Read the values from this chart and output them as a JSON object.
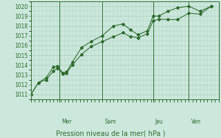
{
  "xlabel": "Pression niveau de la mer( hPa )",
  "ylim": [
    1010.5,
    1020.5
  ],
  "yticks": [
    1011,
    1012,
    1013,
    1014,
    1015,
    1016,
    1017,
    1018,
    1019,
    1020
  ],
  "bg_color": "#cce8dd",
  "grid_color": "#aaccbb",
  "line_color": "#2d6b2d",
  "vlines": [
    {
      "x": 15,
      "label": "Mer"
    },
    {
      "x": 38,
      "label": "Sam"
    },
    {
      "x": 65,
      "label": "Jeu"
    },
    {
      "x": 84,
      "label": "Ven"
    }
  ],
  "line1_x": [
    0,
    4,
    8,
    12,
    14,
    17,
    19,
    22,
    27,
    32,
    38,
    44,
    49,
    53,
    57,
    62,
    65,
    68,
    73,
    78,
    84,
    90,
    96
  ],
  "line1_y": [
    1011.0,
    1012.2,
    1012.7,
    1013.8,
    1013.9,
    1013.2,
    1013.3,
    1014.3,
    1015.8,
    1016.4,
    1017.0,
    1018.0,
    1018.2,
    1017.6,
    1017.1,
    1017.5,
    1019.0,
    1019.0,
    1019.5,
    1019.85,
    1020.0,
    1019.5,
    1020.0
  ],
  "line2_x": [
    0,
    4,
    8,
    12,
    14,
    17,
    19,
    22,
    27,
    32,
    38,
    44,
    49,
    53,
    57,
    62,
    65,
    68,
    73,
    78,
    84,
    90,
    96
  ],
  "line2_y": [
    1011.0,
    1012.2,
    1012.5,
    1013.4,
    1013.7,
    1013.1,
    1013.2,
    1014.0,
    1015.1,
    1015.9,
    1016.4,
    1016.9,
    1017.3,
    1016.9,
    1016.8,
    1017.2,
    1018.5,
    1018.7,
    1018.65,
    1018.65,
    1019.3,
    1019.2,
    1020.0
  ],
  "xlabel_fontsize": 7,
  "ytick_fontsize": 5.5
}
